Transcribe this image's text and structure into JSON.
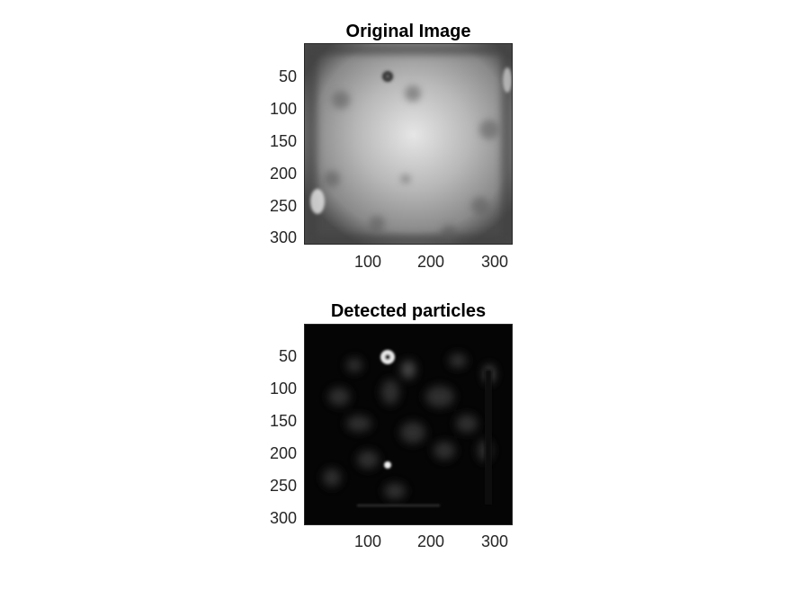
{
  "panels": [
    {
      "title": "Original Image",
      "yticks": [
        "50",
        "100",
        "150",
        "200",
        "250",
        "300"
      ],
      "xticks": [
        "100",
        "200",
        "300"
      ]
    },
    {
      "title": "Detected particles",
      "yticks": [
        "50",
        "100",
        "150",
        "200",
        "250",
        "300"
      ],
      "xticks": [
        "100",
        "200",
        "300"
      ]
    }
  ],
  "colors": {
    "axis": "#262626",
    "title": "#000000"
  }
}
